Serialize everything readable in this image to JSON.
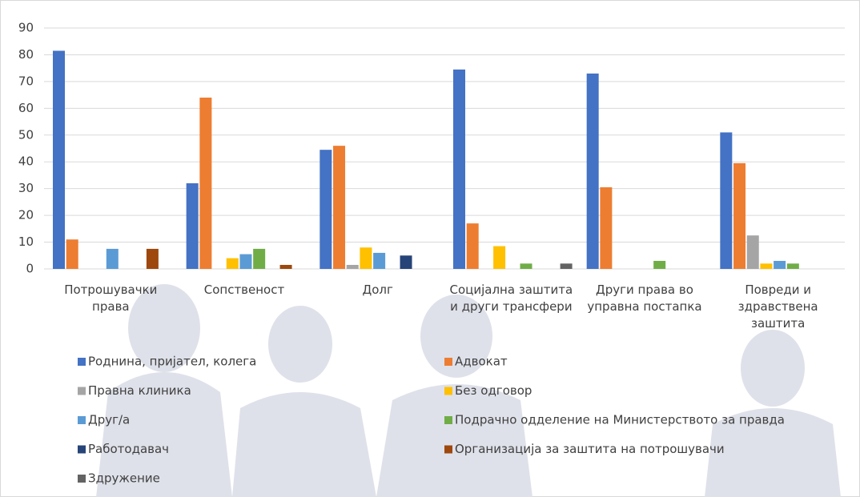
{
  "chart_data": {
    "type": "bar",
    "categories": [
      "Потрошувачки права",
      "Сопственост",
      "Долг",
      "Социјална заштита и други трансфери",
      "Други права во управна постапка",
      "Повреди и здравствена заштита"
    ],
    "series": [
      {
        "name": "Роднина, пријател, колега",
        "color": "#4472c4",
        "values": [
          81.5,
          32,
          44.5,
          74.5,
          73,
          51
        ]
      },
      {
        "name": "Адвокат",
        "color": "#ed7d31",
        "values": [
          11,
          64,
          46,
          17,
          30.5,
          39.5
        ]
      },
      {
        "name": "Правна клиника",
        "color": "#a5a5a5",
        "values": [
          null,
          null,
          1.5,
          null,
          null,
          12.5
        ]
      },
      {
        "name": "Без одговор",
        "color": "#ffc000",
        "values": [
          null,
          4,
          8,
          8.5,
          null,
          2
        ]
      },
      {
        "name": "Друг/а",
        "color": "#5b9bd5",
        "values": [
          7.5,
          5.5,
          6,
          null,
          null,
          3
        ]
      },
      {
        "name": "Подрачно одделение на Министерството за правда",
        "color": "#70ad47",
        "values": [
          null,
          7.5,
          null,
          2,
          3,
          2
        ]
      },
      {
        "name": "Работодавач",
        "color": "#264478",
        "values": [
          null,
          null,
          5,
          null,
          null,
          null
        ]
      },
      {
        "name": "Организација за заштита на потрошувачи",
        "color": "#9e480e",
        "values": [
          7.5,
          1.5,
          null,
          null,
          null,
          null
        ]
      },
      {
        "name": "Здружение",
        "color": "#636363",
        "values": [
          null,
          null,
          null,
          2,
          null,
          null
        ]
      }
    ],
    "ylim": [
      0,
      90
    ],
    "yticks": [
      0,
      10,
      20,
      30,
      40,
      50,
      60,
      70,
      80,
      90
    ],
    "grid": true
  }
}
